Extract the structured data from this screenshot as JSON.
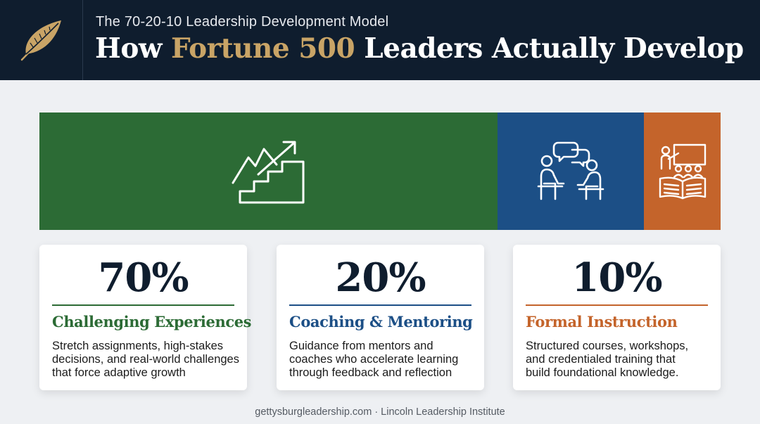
{
  "header": {
    "subtitle": "The 70-20-10 Leadership Development Model",
    "title_part1": "How ",
    "title_accent": "Fortune 500",
    "title_part2": " Leaders Actually Develop",
    "logo_icon": "feather-icon"
  },
  "colors": {
    "navy": "#0f1d2e",
    "gold": "#c9a466",
    "green": "#2c6b35",
    "blue": "#1c4f86",
    "orange": "#c4642b"
  },
  "segments": [
    {
      "percent_value": 70,
      "icon": "stairs-growth-icon"
    },
    {
      "percent_value": 20,
      "icon": "mentoring-conversation-icon"
    },
    {
      "percent_value": 10,
      "icon": "classroom-instruction-icon"
    }
  ],
  "cards": [
    {
      "percent": "70%",
      "heading": "Challenging Experiences",
      "desc_lines": [
        "Stretch assignments, high-stakes",
        "decisions, and real-world challenges",
        "that force adaptive growth"
      ]
    },
    {
      "percent": "20%",
      "heading": "Coaching & Mentoring",
      "desc_lines": [
        "Guidance from mentors and",
        "coaches who accelerate learning",
        "through feedback and reflection"
      ]
    },
    {
      "percent": "10%",
      "heading": "Formal Instruction",
      "desc_lines": [
        "Structured courses, workshops,",
        "and credentialed training that",
        "build foundational knowledge."
      ]
    }
  ],
  "footer": "gettysburgleadership.com · Lincoln Leadership Institute"
}
